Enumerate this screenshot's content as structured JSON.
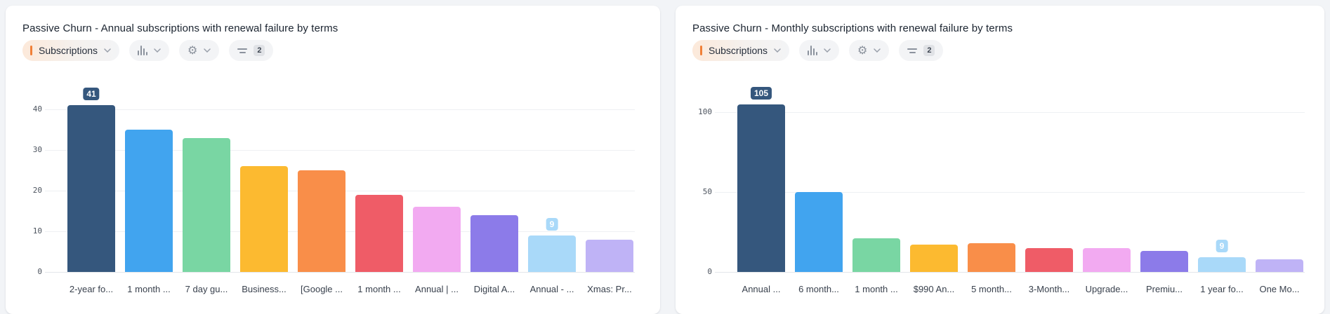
{
  "page": {
    "background_color": "#f2f4f7"
  },
  "cards": [
    {
      "title": "Passive Churn - Annual subscriptions with renewal failure by terms",
      "toolbar": {
        "event_label": "Subscriptions",
        "event_accent_color": "#f08038",
        "filter_count": "2"
      }
    },
    {
      "title": "Passive Churn - Monthly subscriptions with renewal failure by terms",
      "toolbar": {
        "event_label": "Subscriptions",
        "event_accent_color": "#f08038",
        "filter_count": "2"
      }
    }
  ],
  "chart_data": [
    {
      "type": "bar",
      "title": "Passive Churn - Annual subscriptions with renewal failure by terms",
      "categories": [
        "2-year fo...",
        "1 month ...",
        "7 day gu...",
        "Business...",
        "[Google ...",
        "1 month ...",
        "Annual | ...",
        "Digital A...",
        "Annual - ...",
        "Xmas: Pr..."
      ],
      "values": [
        41,
        35,
        33,
        26,
        25,
        19,
        16,
        14,
        9,
        8
      ],
      "bar_colors": [
        "#35577D",
        "#41A4EF",
        "#79D6A3",
        "#FCBA30",
        "#F98E49",
        "#EF5C67",
        "#F2AAF1",
        "#8C7BE9",
        "#A9D9F9",
        "#BFB3F6"
      ],
      "badges": [
        {
          "bar_index": 0,
          "label": "41",
          "background": "#35577D",
          "text_color": "#ffffff"
        },
        {
          "bar_index": 8,
          "label": "9",
          "background": "#A9D9F9",
          "text_color": "#ffffff"
        }
      ],
      "yticks": [
        0,
        10,
        20,
        30,
        40
      ],
      "ylim": [
        0,
        43
      ],
      "xlabel": "",
      "ylabel": "",
      "grid": true,
      "legend": false
    },
    {
      "type": "bar",
      "title": "Passive Churn - Monthly subscriptions with renewal failure by terms",
      "categories": [
        "Annual ...",
        "6 month...",
        "1 month ...",
        "$990 An...",
        "5 month...",
        "3-Month...",
        "Upgrade...",
        "Premiu...",
        "1 year fo...",
        "One Mo..."
      ],
      "values": [
        105,
        50,
        21,
        17,
        18,
        15,
        15,
        13,
        9,
        8
      ],
      "bar_colors": [
        "#35577D",
        "#41A4EF",
        "#79D6A3",
        "#FCBA30",
        "#F98E49",
        "#EF5C67",
        "#F2AAF1",
        "#8C7BE9",
        "#A9D9F9",
        "#BFB3F6"
      ],
      "badges": [
        {
          "bar_index": 0,
          "label": "105",
          "background": "#35577D",
          "text_color": "#ffffff"
        },
        {
          "bar_index": 8,
          "label": "9",
          "background": "#A9D9F9",
          "text_color": "#ffffff"
        }
      ],
      "yticks": [
        0,
        50,
        100
      ],
      "ylim": [
        0,
        110
      ],
      "xlabel": "",
      "ylabel": "",
      "grid": true,
      "legend": false
    }
  ]
}
